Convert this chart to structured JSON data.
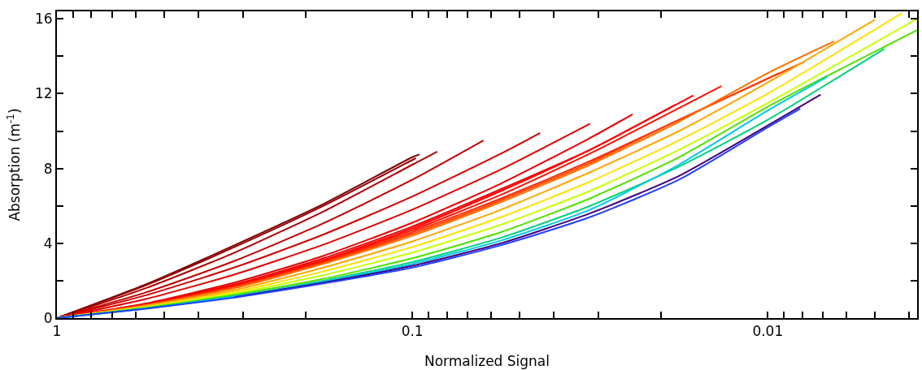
{
  "chart_data": {
    "type": "line",
    "xlabel": "Normalized Signal",
    "ylabel": "Absorption (m$^{-1}$)",
    "log": "x",
    "marker": "none",
    "line_style": "solid",
    "xlim": [
      1,
      0.0038
    ],
    "ylim": [
      0,
      16.4
    ],
    "xticks": [
      1,
      {
        "value": 0.9,
        "label": null
      },
      {
        "value": 0.8,
        "label": null
      },
      {
        "value": 0.7,
        "label": null
      },
      {
        "value": 0.6,
        "label": null
      },
      {
        "value": 0.5,
        "label": null
      },
      {
        "value": 0.4,
        "label": null
      },
      {
        "value": 0.3,
        "label": null
      },
      {
        "value": 0.2,
        "label": null
      },
      0.1,
      {
        "value": 0.09,
        "label": null
      },
      {
        "value": 0.08,
        "label": null
      },
      {
        "value": 0.07,
        "label": null
      },
      {
        "value": 0.06,
        "label": null
      },
      {
        "value": 0.05,
        "label": null
      },
      {
        "value": 0.04,
        "label": null
      },
      {
        "value": 0.03,
        "label": null
      },
      {
        "value": 0.02,
        "label": null
      },
      0.01,
      {
        "value": 0.009,
        "label": null
      },
      {
        "value": 0.008,
        "label": null
      },
      {
        "value": 0.007,
        "label": null
      },
      {
        "value": 0.006,
        "label": null
      },
      {
        "value": 0.005,
        "label": null
      },
      {
        "value": 0.004,
        "label": null
      }
    ],
    "yticks": [
      0,
      {
        "value": 2,
        "label": null
      },
      4,
      {
        "value": 6,
        "label": null
      },
      8,
      {
        "value": 10,
        "label": null
      },
      12,
      {
        "value": 14,
        "label": null
      },
      16
    ],
    "series": [
      {
        "color": "#800000",
        "x": [
          1,
          0.5623,
          0.3162,
          0.1778,
          0.1,
          0.0955
        ],
        "values": [
          0,
          1.8,
          3.9,
          6.1,
          8.6,
          8.75
        ]
      },
      {
        "color": "#900000",
        "x": [
          1,
          0.5623,
          0.3162,
          0.1778,
          0.1,
          0.0977
        ],
        "values": [
          0,
          1.75,
          3.8,
          6.0,
          8.45,
          8.55
        ]
      },
      {
        "color": "#b00000",
        "x": [
          1,
          0.5623,
          0.3162,
          0.1778,
          0.1,
          0.0851
        ],
        "values": [
          0,
          1.6,
          3.5,
          5.7,
          8.2,
          8.9
        ]
      },
      {
        "color": "#c00000",
        "x": [
          1,
          0.5623,
          0.3162,
          0.1778,
          0.1,
          0.0631
        ],
        "values": [
          0,
          1.37,
          3.06,
          5.07,
          7.4,
          9.5
        ]
      },
      {
        "color": "#d00000",
        "x": [
          1,
          0.5623,
          0.3162,
          0.1778,
          0.1,
          0.05623,
          0.0437
        ],
        "values": [
          0,
          1.22,
          2.71,
          4.47,
          6.5,
          8.8,
          9.9
        ]
      },
      {
        "color": "#e00000",
        "x": [
          1,
          0.5623,
          0.3162,
          0.1778,
          0.1,
          0.05623,
          0.0316
        ],
        "values": [
          0,
          1.02,
          2.33,
          3.93,
          5.8,
          7.96,
          10.4
        ]
      },
      {
        "color": "#e80000",
        "x": [
          1,
          0.5623,
          0.3162,
          0.1778,
          0.1,
          0.05623,
          0.03162,
          0.024
        ],
        "values": [
          0,
          0.78,
          1.9,
          3.33,
          5.1,
          7.2,
          9.63,
          10.9
        ]
      },
      {
        "color": "#f00000",
        "x": [
          1,
          0.5623,
          0.3162,
          0.1778,
          0.1,
          0.05623,
          0.03162,
          0.0182
        ],
        "values": [
          0,
          0.75,
          1.8,
          3.2,
          4.9,
          6.9,
          9.0,
          11.4
        ]
      },
      {
        "color": "#ff0000",
        "x": [
          1,
          0.5623,
          0.3162,
          0.1778,
          0.1,
          0.05623,
          0.03162,
          0.0162
        ],
        "values": [
          0,
          0.73,
          1.75,
          3.1,
          4.8,
          6.8,
          9.0,
          11.9
        ]
      },
      {
        "color": "#ff1000",
        "x": [
          1,
          0.5623,
          0.3162,
          0.1778,
          0.1,
          0.05623,
          0.03162,
          0.0135
        ],
        "values": [
          0,
          0.72,
          1.7,
          3.05,
          4.7,
          6.6,
          8.8,
          12.4
        ]
      },
      {
        "color": "#ff2800",
        "x": [
          1,
          0.5623,
          0.3162,
          0.1778,
          0.1,
          0.05623,
          0.03162,
          0.01778,
          0.0093
        ],
        "values": [
          0,
          0.7,
          1.68,
          3.0,
          4.6,
          6.4,
          8.4,
          10.6,
          13.1
        ]
      },
      {
        "color": "#ff4000",
        "x": [
          1,
          0.5623,
          0.3162,
          0.1778,
          0.1,
          0.05623,
          0.03162,
          0.01778,
          0.0079
        ],
        "values": [
          0,
          0.69,
          1.65,
          2.95,
          4.5,
          6.3,
          8.3,
          10.6,
          13.7
        ]
      },
      {
        "color": "#ff7000",
        "x": [
          1,
          0.5623,
          0.3162,
          0.1778,
          0.1,
          0.05623,
          0.03162,
          0.01778,
          0.01,
          0.0065
        ],
        "values": [
          0,
          0.68,
          1.6,
          2.9,
          4.4,
          6.2,
          8.2,
          10.5,
          13.1,
          14.8
        ]
      },
      {
        "color": "#ffa500",
        "x": [
          1,
          0.5623,
          0.3162,
          0.1778,
          0.1,
          0.05623,
          0.03162,
          0.01778,
          0.01,
          0.005
        ],
        "values": [
          0,
          0.65,
          1.5,
          2.7,
          4.1,
          5.8,
          7.8,
          10.0,
          12.6,
          15.95
        ]
      },
      {
        "color": "#ffe000",
        "x": [
          1,
          0.5623,
          0.3162,
          0.1778,
          0.1,
          0.05623,
          0.03162,
          0.01778,
          0.01,
          0.0042
        ],
        "values": [
          0,
          0.6,
          1.4,
          2.5,
          3.8,
          5.4,
          7.3,
          9.5,
          12.0,
          16.3
        ]
      },
      {
        "color": "#c8ff00",
        "x": [
          1,
          0.5623,
          0.3162,
          0.1778,
          0.1,
          0.05623,
          0.03162,
          0.01778,
          0.01,
          0.0038
        ],
        "values": [
          0,
          0.57,
          1.32,
          2.3,
          3.5,
          5.0,
          6.8,
          9.0,
          11.5,
          16.0
        ]
      },
      {
        "color": "#50e000",
        "x": [
          1,
          0.5623,
          0.3162,
          0.1778,
          0.1,
          0.05623,
          0.03162,
          0.01778,
          0.01,
          0.0038
        ],
        "values": [
          0,
          0.55,
          1.25,
          2.1,
          3.2,
          4.6,
          6.4,
          8.6,
          11.3,
          15.4
        ]
      },
      {
        "color": "#00d080",
        "x": [
          1,
          0.5623,
          0.3162,
          0.1778,
          0.1,
          0.05623,
          0.03162,
          0.01778,
          0.01,
          0.0047
        ],
        "values": [
          0,
          0.52,
          1.18,
          2.0,
          3.0,
          4.3,
          6.0,
          8.1,
          10.6,
          14.4
        ]
      },
      {
        "color": "#00c8e8",
        "x": [
          1,
          0.5623,
          0.3162,
          0.1778,
          0.1,
          0.05623,
          0.03162,
          0.01778,
          0.01,
          0.0068
        ],
        "values": [
          0,
          0.51,
          1.15,
          1.95,
          2.9,
          4.15,
          5.8,
          8.2,
          11.1,
          12.9
        ]
      },
      {
        "color": "#400080",
        "x": [
          0.3162,
          0.1778,
          0.1,
          0.05623,
          0.03162,
          0.01778,
          0.01,
          0.0071
        ],
        "values": [
          1.12,
          1.9,
          2.8,
          4.0,
          5.6,
          7.6,
          10.3,
          11.95
        ]
      },
      {
        "color": "#2040ff",
        "x": [
          1,
          0.5623,
          0.3162,
          0.1778,
          0.1,
          0.05623,
          0.03162,
          0.01778,
          0.01,
          0.0081
        ],
        "values": [
          0,
          0.5,
          1.1,
          1.85,
          2.7,
          3.9,
          5.4,
          7.4,
          10.2,
          11.2
        ]
      }
    ]
  }
}
